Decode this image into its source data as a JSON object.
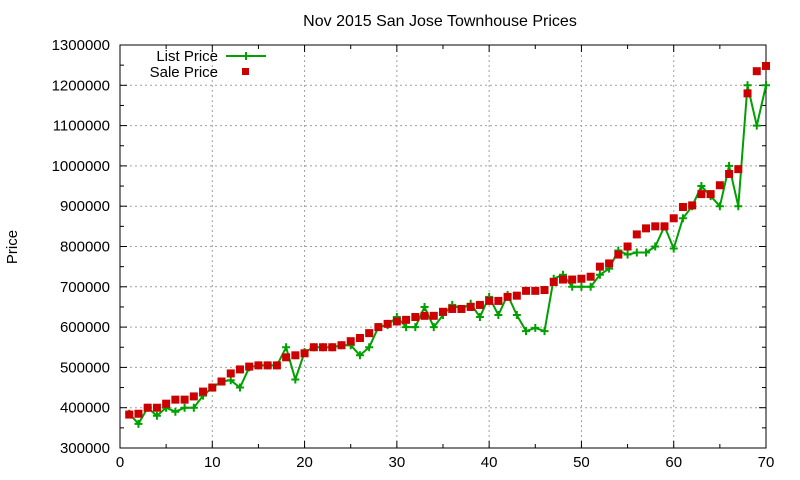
{
  "chart_data": {
    "type": "line",
    "title": "Nov 2015 San Jose Townhouse Prices",
    "xlabel": "",
    "ylabel": "Price",
    "xlim": [
      0,
      70
    ],
    "ylim": [
      300000,
      1300000
    ],
    "x_ticks": [
      0,
      10,
      20,
      30,
      40,
      50,
      60,
      70
    ],
    "y_ticks": [
      300000,
      400000,
      500000,
      600000,
      700000,
      800000,
      900000,
      1000000,
      1100000,
      1200000,
      1300000
    ],
    "grid": true,
    "legend_position": "top-left",
    "series": [
      {
        "name": "List Price",
        "style": "line+cross",
        "color": "#00a000",
        "x": [
          1,
          2,
          3,
          4,
          5,
          6,
          7,
          8,
          9,
          10,
          11,
          12,
          13,
          14,
          15,
          16,
          17,
          18,
          19,
          20,
          21,
          22,
          23,
          24,
          25,
          26,
          27,
          28,
          29,
          30,
          31,
          32,
          33,
          34,
          35,
          36,
          37,
          38,
          39,
          40,
          41,
          42,
          43,
          44,
          45,
          46,
          47,
          48,
          49,
          50,
          51,
          52,
          53,
          54,
          55,
          56,
          57,
          58,
          59,
          60,
          61,
          62,
          63,
          64,
          65,
          66,
          67,
          68,
          69,
          70
        ],
        "y": [
          385000,
          360000,
          400000,
          380000,
          400000,
          390000,
          400000,
          400000,
          430000,
          450000,
          465000,
          468000,
          450000,
          500000,
          505000,
          505000,
          505000,
          550000,
          470000,
          538000,
          550000,
          550000,
          550000,
          555000,
          555000,
          530000,
          550000,
          600000,
          605000,
          625000,
          600000,
          600000,
          650000,
          600000,
          630000,
          655000,
          645000,
          658000,
          625000,
          675000,
          630000,
          680000,
          630000,
          590000,
          598000,
          590000,
          720000,
          730000,
          700000,
          700000,
          700000,
          730000,
          745000,
          790000,
          780000,
          785000,
          785000,
          800000,
          850000,
          795000,
          870000,
          900000,
          950000,
          925000,
          900000,
          1000000,
          900000,
          1200000,
          1100000,
          1200000
        ]
      },
      {
        "name": "Sale Price",
        "style": "square",
        "color": "#cc0000",
        "x": [
          1,
          2,
          3,
          4,
          5,
          6,
          7,
          8,
          9,
          10,
          11,
          12,
          13,
          14,
          15,
          16,
          17,
          18,
          19,
          20,
          21,
          22,
          23,
          24,
          25,
          26,
          27,
          28,
          29,
          30,
          31,
          32,
          33,
          34,
          35,
          36,
          37,
          38,
          39,
          40,
          41,
          42,
          43,
          44,
          45,
          46,
          47,
          48,
          49,
          50,
          51,
          52,
          53,
          54,
          55,
          56,
          57,
          58,
          59,
          60,
          61,
          62,
          63,
          64,
          65,
          66,
          67,
          68,
          69,
          70
        ],
        "y": [
          383000,
          385000,
          400000,
          400000,
          410000,
          420000,
          420000,
          428000,
          440000,
          450000,
          465000,
          485000,
          495000,
          502000,
          505000,
          505000,
          505000,
          525000,
          530000,
          535000,
          550000,
          550000,
          550000,
          555000,
          565000,
          573000,
          585000,
          600000,
          608000,
          614000,
          618000,
          625000,
          628000,
          628000,
          638000,
          645000,
          645000,
          650000,
          655000,
          665000,
          665000,
          675000,
          678000,
          690000,
          690000,
          692000,
          712000,
          718000,
          718000,
          720000,
          725000,
          750000,
          758000,
          780000,
          800000,
          830000,
          845000,
          850000,
          850000,
          870000,
          898000,
          902000,
          930000,
          930000,
          952000,
          980000,
          992000,
          1180000,
          1235000,
          1248000
        ]
      }
    ]
  }
}
